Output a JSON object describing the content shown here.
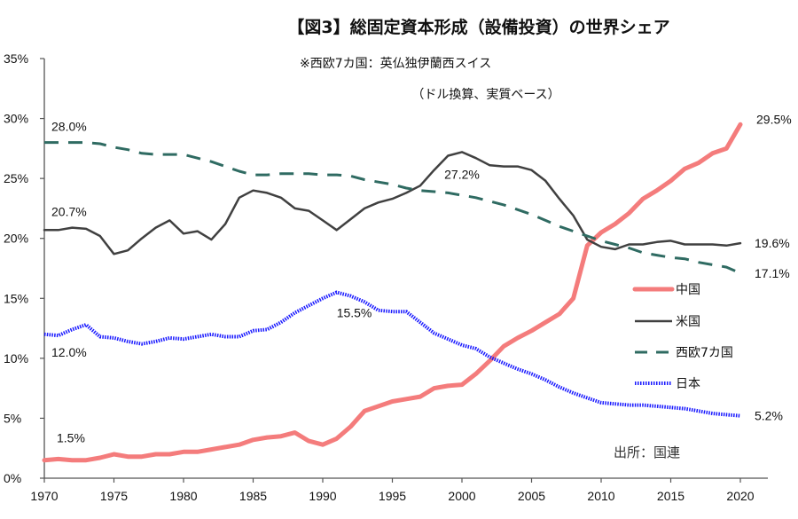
{
  "chart_data": {
    "type": "line",
    "title": "【図3】総固定資本形成（設備投資）の世界シェア",
    "subtitle": "※西欧7カ国：英仏独伊蘭西スイス",
    "note": "（ドル換算、実質ベース）",
    "source": "出所：国連",
    "xlabel": "",
    "ylabel": "",
    "xlim": [
      1970,
      2022
    ],
    "ylim": [
      0,
      35
    ],
    "x_ticks": [
      "1970",
      "1975",
      "1980",
      "1985",
      "1990",
      "1995",
      "2000",
      "2005",
      "2010",
      "2015",
      "2020"
    ],
    "y_ticks": [
      "0%",
      "5%",
      "10%",
      "15%",
      "20%",
      "25%",
      "30%",
      "35%"
    ],
    "grid": false,
    "legend_position": "right",
    "x": [
      1970,
      1971,
      1972,
      1973,
      1974,
      1975,
      1976,
      1977,
      1978,
      1979,
      1980,
      1981,
      1982,
      1983,
      1984,
      1985,
      1986,
      1987,
      1988,
      1989,
      1990,
      1991,
      1992,
      1993,
      1994,
      1995,
      1996,
      1997,
      1998,
      1999,
      2000,
      2001,
      2002,
      2003,
      2004,
      2005,
      2006,
      2007,
      2008,
      2009,
      2010,
      2011,
      2012,
      2013,
      2014,
      2015,
      2016,
      2017,
      2018,
      2019,
      2020
    ],
    "series": [
      {
        "name": "中国",
        "color": "#f47c7c",
        "style": "solid-thick",
        "values": [
          1.5,
          1.6,
          1.5,
          1.5,
          1.7,
          2.0,
          1.8,
          1.8,
          2.0,
          2.0,
          2.2,
          2.2,
          2.4,
          2.6,
          2.8,
          3.2,
          3.4,
          3.5,
          3.8,
          3.1,
          2.8,
          3.3,
          4.3,
          5.6,
          6.0,
          6.4,
          6.6,
          6.8,
          7.5,
          7.7,
          7.8,
          8.7,
          9.8,
          11.0,
          11.7,
          12.3,
          13.0,
          13.7,
          15.0,
          19.4,
          20.5,
          21.2,
          22.1,
          23.3,
          24.0,
          24.8,
          25.8,
          26.3,
          27.1,
          27.5,
          29.5
        ]
      },
      {
        "name": "米国",
        "color": "#404040",
        "style": "solid",
        "values": [
          20.7,
          20.7,
          20.9,
          20.8,
          20.2,
          18.7,
          19.0,
          20.0,
          20.9,
          21.5,
          20.4,
          20.6,
          19.9,
          21.2,
          23.4,
          24.0,
          23.8,
          23.4,
          22.5,
          22.3,
          21.5,
          20.7,
          21.6,
          22.5,
          23.0,
          23.3,
          23.8,
          24.4,
          25.7,
          26.9,
          27.2,
          26.7,
          26.1,
          26.0,
          26.0,
          25.7,
          24.8,
          23.3,
          21.9,
          19.9,
          19.3,
          19.1,
          19.5,
          19.5,
          19.7,
          19.8,
          19.5,
          19.5,
          19.5,
          19.4,
          19.6
        ]
      },
      {
        "name": "西欧7カ国",
        "color": "#2f6b62",
        "style": "dashed",
        "values": [
          28.0,
          28.0,
          28.0,
          28.0,
          27.9,
          27.6,
          27.4,
          27.1,
          27.0,
          27.0,
          27.0,
          26.7,
          26.4,
          26.0,
          25.6,
          25.3,
          25.3,
          25.4,
          25.4,
          25.4,
          25.3,
          25.3,
          25.2,
          24.9,
          24.7,
          24.5,
          24.2,
          24.0,
          23.9,
          23.8,
          23.6,
          23.4,
          23.1,
          22.8,
          22.4,
          22.0,
          21.5,
          21.0,
          20.6,
          20.2,
          19.8,
          19.5,
          19.2,
          18.8,
          18.6,
          18.4,
          18.3,
          18.0,
          17.8,
          17.6,
          17.1
        ]
      },
      {
        "name": "日本",
        "color": "#1a1aff",
        "style": "dotted-thick",
        "values": [
          12.0,
          11.9,
          12.4,
          12.8,
          11.8,
          11.7,
          11.4,
          11.2,
          11.4,
          11.7,
          11.6,
          11.8,
          12.0,
          11.8,
          11.8,
          12.3,
          12.4,
          13.0,
          13.8,
          14.4,
          15.0,
          15.5,
          15.2,
          14.7,
          14.0,
          13.9,
          13.9,
          13.0,
          12.1,
          11.6,
          11.1,
          10.8,
          10.1,
          9.6,
          9.1,
          8.7,
          8.2,
          7.6,
          7.1,
          6.7,
          6.3,
          6.2,
          6.1,
          6.1,
          6.0,
          5.9,
          5.8,
          5.6,
          5.4,
          5.3,
          5.2
        ]
      }
    ],
    "annotations": [
      {
        "text": "28.0%",
        "series": "西欧7カ国",
        "x": 1970
      },
      {
        "text": "20.7%",
        "series": "米国",
        "x": 1970
      },
      {
        "text": "12.0%",
        "series": "日本",
        "x": 1970
      },
      {
        "text": "1.5%",
        "series": "中国",
        "x": 1970
      },
      {
        "text": "15.5%",
        "series": "日本",
        "x": 1991
      },
      {
        "text": "27.2%",
        "series": "米国",
        "x": 2000
      },
      {
        "text": "29.5%",
        "series": "中国",
        "x": 2020
      },
      {
        "text": "19.6%",
        "series": "米国",
        "x": 2020
      },
      {
        "text": "17.1%",
        "series": "西欧7カ国",
        "x": 2020
      },
      {
        "text": "5.2%",
        "series": "日本",
        "x": 2020
      }
    ]
  }
}
